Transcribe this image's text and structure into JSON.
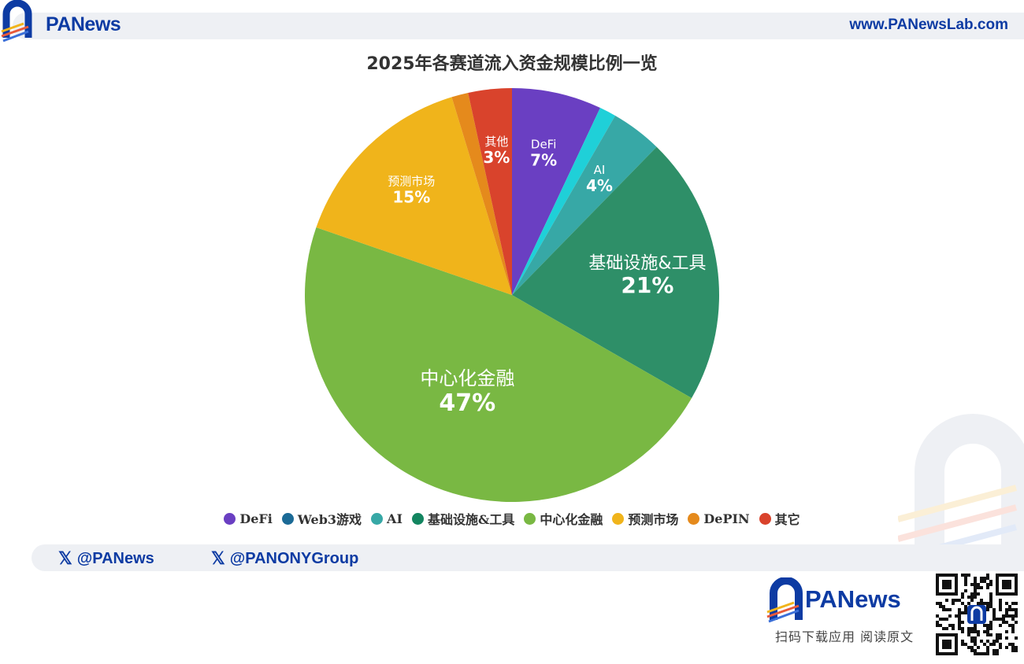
{
  "header": {
    "brand": "PANews",
    "url": "www.PANewsLab.com"
  },
  "chart_data": {
    "type": "pie",
    "title": "2025年各赛道流入资金规模比例一览",
    "slices": [
      {
        "name": "DeFi",
        "value": 7,
        "color": "#6a3fc2",
        "label": "DeFi",
        "pct": "7%"
      },
      {
        "name": "Web3游戏",
        "value": 1.3,
        "color": "#1fd0d8",
        "label": "",
        "pct": ""
      },
      {
        "name": "AI",
        "value": 4,
        "color": "#37a8a6",
        "label": "AI",
        "pct": "4%"
      },
      {
        "name": "基础设施&工具",
        "value": 21,
        "color": "#2e8f68",
        "label": "基础设施&工具",
        "pct": "21%"
      },
      {
        "name": "中心化金融",
        "value": 47,
        "color": "#79b843",
        "label": "中心化金融",
        "pct": "47%"
      },
      {
        "name": "预测市场",
        "value": 15,
        "color": "#f0b41b",
        "label": "预测市场",
        "pct": "15%"
      },
      {
        "name": "DePIN",
        "value": 1.3,
        "color": "#e58a1c",
        "label": "",
        "pct": ""
      },
      {
        "name": "其他",
        "value": 3.4,
        "color": "#d9432c",
        "label": "其他",
        "pct": "3%"
      }
    ],
    "legend": [
      {
        "name": "DeFi",
        "color": "#6a3fc2"
      },
      {
        "name": "Web3游戏",
        "color": "#1b6a96"
      },
      {
        "name": "AI",
        "color": "#37a8a6"
      },
      {
        "name": "基础设施&工具",
        "color": "#138560"
      },
      {
        "name": "中心化金融",
        "color": "#79b843"
      },
      {
        "name": "预测市场",
        "color": "#f0b41b"
      },
      {
        "name": "DePIN",
        "color": "#e58a1c"
      },
      {
        "name": "其它",
        "color": "#d9432c"
      }
    ],
    "legend_position": "bottom"
  },
  "footer": {
    "social": [
      {
        "handle": "@PANews"
      },
      {
        "handle": "@PANONYGroup"
      }
    ],
    "brand": "PANews",
    "scan_text": "扫码下载应用  阅读原文"
  }
}
